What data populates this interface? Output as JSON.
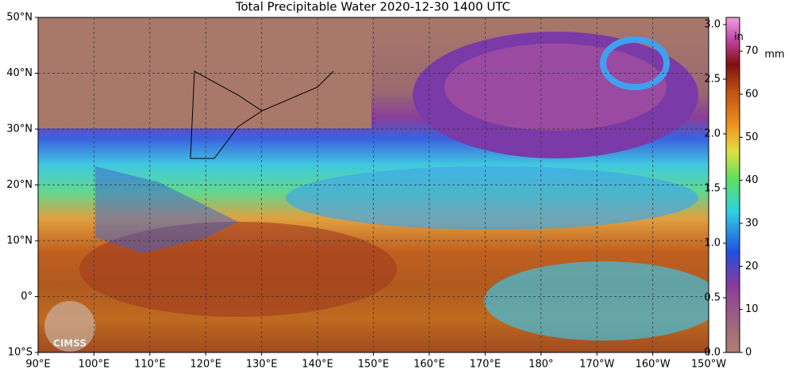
{
  "title": "Total Precipitable Water  2020-12-30 1400 UTC",
  "lon_labels": [
    "90°E",
    "100°E",
    "110°E",
    "120°E",
    "130°E",
    "140°E",
    "150°E",
    "160°E",
    "170°E",
    "180°",
    "170°W",
    "160°W",
    "150°W"
  ],
  "lat_labels": [
    "50°N",
    "40°N",
    "30°N",
    "20°N",
    "10°N",
    "0°",
    "10°S"
  ],
  "colorbar": {
    "in_label": "in",
    "mm_label": "mm",
    "in_ticks": [
      "0.0",
      "0.5",
      "1.0",
      "1.5",
      "2.0",
      "2.5",
      "3.0"
    ],
    "mm_ticks": [
      "0",
      "10",
      "20",
      "30",
      "40",
      "50",
      "60",
      "70"
    ]
  },
  "logo": "CIMSS"
}
